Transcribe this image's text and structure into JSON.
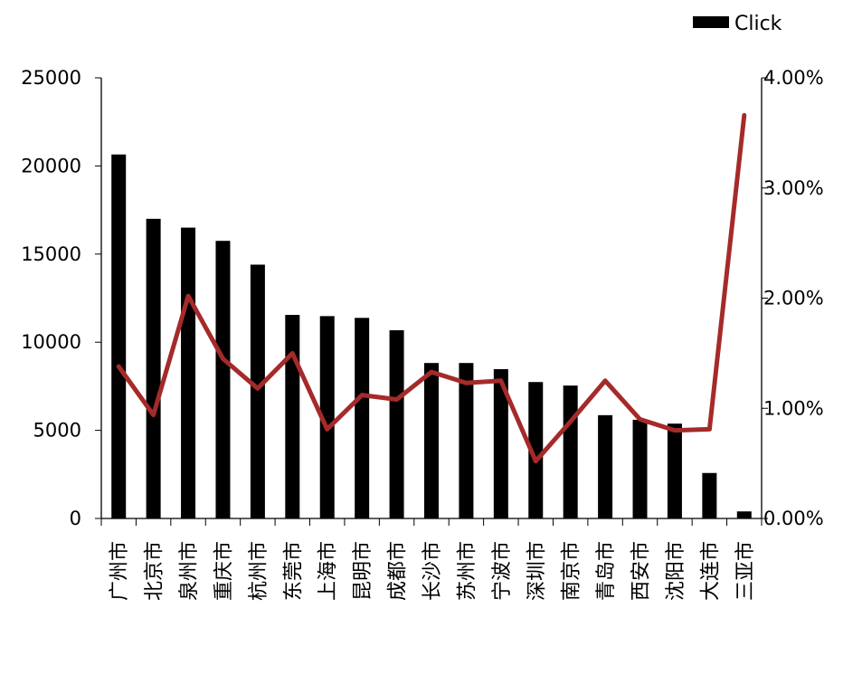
{
  "chart_data": {
    "type": "bar",
    "categories": [
      "广州市",
      "北京市",
      "泉州市",
      "重庆市",
      "杭州市",
      "东莞市",
      "上海市",
      "昆明市",
      "成都市",
      "长沙市",
      "苏州市",
      "宁波市",
      "深圳市",
      "南京市",
      "青岛市",
      "西安市",
      "沈阳市",
      "大连市",
      "三亚市"
    ],
    "series": [
      {
        "name": "Click",
        "type": "bar",
        "axis": "left",
        "color": "#000000",
        "values": [
          20650,
          17000,
          16500,
          15750,
          14400,
          11550,
          11480,
          11380,
          10680,
          8820,
          8820,
          8470,
          7740,
          7540,
          5860,
          5600,
          5380,
          2580,
          400
        ]
      },
      {
        "type": "line",
        "axis": "right",
        "color": "#A52A2A",
        "values": [
          0.0138,
          0.0094,
          0.0202,
          0.0145,
          0.0118,
          0.015,
          0.0081,
          0.0112,
          0.0108,
          0.0133,
          0.0123,
          0.0125,
          0.0052,
          0.0088,
          0.0125,
          0.009,
          0.008,
          0.0081,
          0.0366
        ]
      }
    ],
    "y_left": {
      "ylim": [
        0,
        25000
      ],
      "ticks": [
        "0",
        "5000",
        "10000",
        "15000",
        "20000",
        "25000"
      ]
    },
    "y_right": {
      "ylim": [
        0,
        0.04
      ],
      "ticks": [
        "0.00%",
        "1.00%",
        "2.00%",
        "3.00%",
        "4.00%"
      ]
    },
    "legend": {
      "position": "top-right",
      "entries": [
        "Click"
      ]
    },
    "grid": false
  }
}
